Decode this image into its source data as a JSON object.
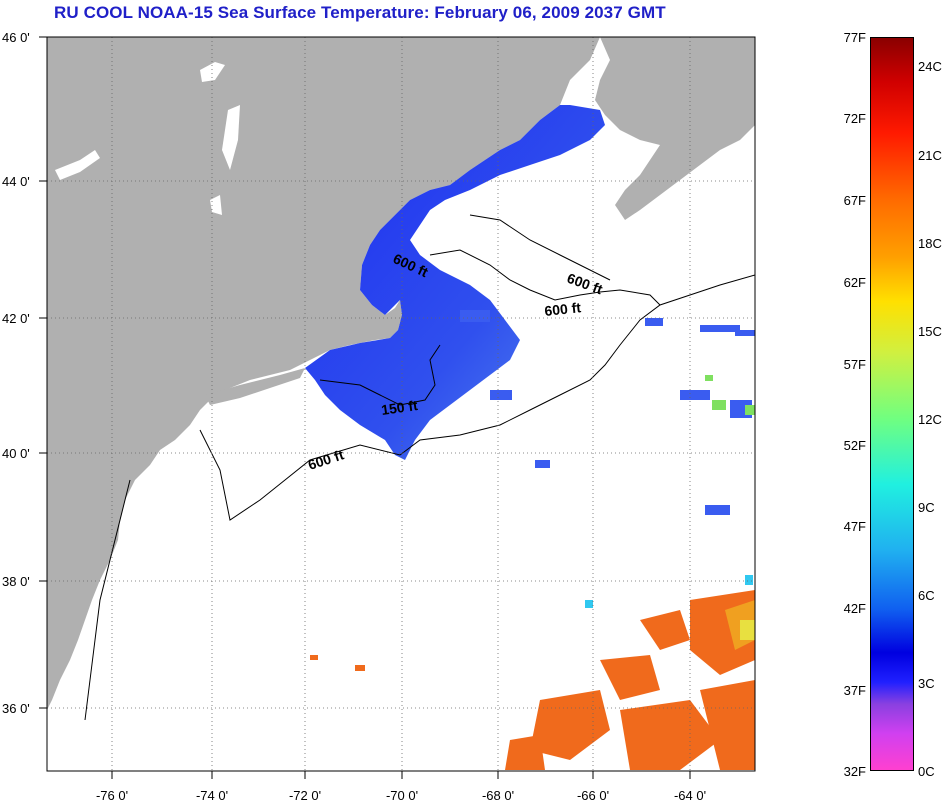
{
  "title": "RU COOL  NOAA-15  Sea Surface Temperature:  February 06, 2009 2037 GMT",
  "lat_labels": [
    "46 0'",
    "44 0'",
    "42 0'",
    "40 0'",
    "38 0'",
    "36 0'"
  ],
  "lon_labels": [
    "-76 0'",
    "-74 0'",
    "-72 0'",
    "-70 0'",
    "-68 0'",
    "-66 0'",
    "-64 0'"
  ],
  "contour_labels": [
    "600 ft",
    "600 ft",
    "600 ft",
    "150 ft",
    "600 ft"
  ],
  "colorbar": {
    "fahrenheit": [
      "77F",
      "72F",
      "67F",
      "62F",
      "57F",
      "52F",
      "47F",
      "42F",
      "37F",
      "32F"
    ],
    "celsius": [
      "24C",
      "21C",
      "18C",
      "15C",
      "12C",
      "9C",
      "6C",
      "3C",
      "0C"
    ]
  },
  "colors": {
    "land": "#b0b0b0",
    "title": "#2020c8",
    "cold_water": "#2a3cf0",
    "warm_water": "#f06a1c"
  }
}
